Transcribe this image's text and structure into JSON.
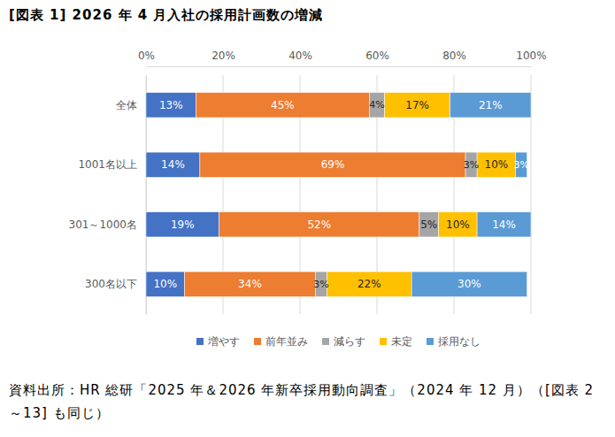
{
  "chart_data": {
    "type": "bar",
    "orientation": "horizontal",
    "stacked": true,
    "data_labels": true,
    "grid": true,
    "legend": "bottom",
    "title": "[図表 1] 2026 年 4 月入社の採用計画数の増減",
    "source": "資料出所：HR 総研「2025 年＆2026 年新卒採用動向調査」（2024 年 12 月）（[図表 2～13] も同じ）",
    "categories": [
      "全体",
      "1001名以上",
      "301～1000名",
      "300名以下"
    ],
    "xlim": [
      0,
      100
    ],
    "xticks": [
      {
        "value": 0,
        "label": "0%"
      },
      {
        "value": 20,
        "label": "20%"
      },
      {
        "value": 40,
        "label": "40%"
      },
      {
        "value": 60,
        "label": "60%"
      },
      {
        "value": 80,
        "label": "80%"
      },
      {
        "value": 100,
        "label": "100%"
      }
    ],
    "series": [
      {
        "name": "増やす",
        "color": "#4472c4",
        "values": [
          13,
          14,
          19,
          10
        ],
        "value_labels": [
          "13%",
          "14%",
          "19%",
          "10%"
        ]
      },
      {
        "name": "前年並み",
        "color": "#ed7d31",
        "values": [
          45,
          69,
          52,
          34
        ],
        "value_labels": [
          "45%",
          "69%",
          "52%",
          "34%"
        ]
      },
      {
        "name": "減らす",
        "color": "#a5a5a5",
        "values": [
          4,
          3,
          5,
          3
        ],
        "value_labels": [
          "4%",
          "3%",
          "5%",
          "3%"
        ]
      },
      {
        "name": "未定",
        "color": "#ffc000",
        "values": [
          17,
          10,
          10,
          22
        ],
        "value_labels": [
          "17%",
          "10%",
          "10%",
          "22%"
        ]
      },
      {
        "name": "採用なし",
        "color": "#5b9bd5",
        "values": [
          21,
          3,
          14,
          30
        ],
        "value_labels": [
          "21%",
          "3%",
          "14%",
          "30%"
        ]
      }
    ]
  }
}
